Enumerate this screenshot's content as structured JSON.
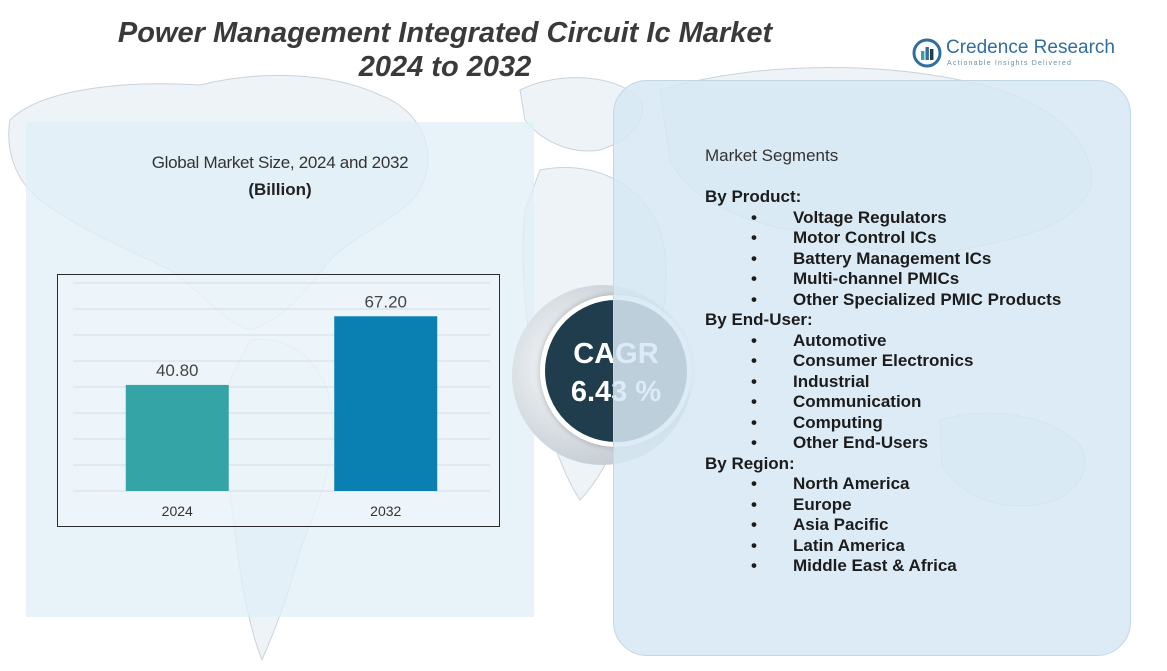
{
  "title": {
    "line1": "Power Management Integrated Circuit Ic Market",
    "line2": "2024 to 2032"
  },
  "brand": {
    "name": "Credence Research",
    "tagline": "Actionable Insights Delivered"
  },
  "chart_data": {
    "type": "bar",
    "title": "Global Market Size, 2024 and 2032",
    "unit": "(Billion)",
    "categories": [
      "2024",
      "2032"
    ],
    "values": [
      40.8,
      67.2
    ],
    "value_labels": [
      "40.80",
      "67.20"
    ],
    "colors": [
      "#35a4a6",
      "#0a7fb1"
    ],
    "ylim": [
      0,
      80
    ],
    "grid": true,
    "xlabel": "",
    "ylabel": ""
  },
  "cagr": {
    "label": "CAGR",
    "value": "6.43 %"
  },
  "segments": {
    "heading": "Market Segments",
    "groups": [
      {
        "title": "By Product:",
        "items": [
          "Voltage Regulators",
          "Motor Control ICs",
          "Battery Management ICs",
          "Multi-channel PMICs",
          "Other Specialized PMIC Products"
        ]
      },
      {
        "title": "By End-User:",
        "items": [
          "Automotive",
          "Consumer Electronics",
          "Industrial",
          "Communication",
          "Computing",
          "Other End-Users"
        ]
      },
      {
        "title": "By Region:",
        "items": [
          "North America",
          "Europe",
          "Asia Pacific",
          "Latin America",
          "Middle East & Africa"
        ]
      }
    ],
    "bullet": "•"
  }
}
